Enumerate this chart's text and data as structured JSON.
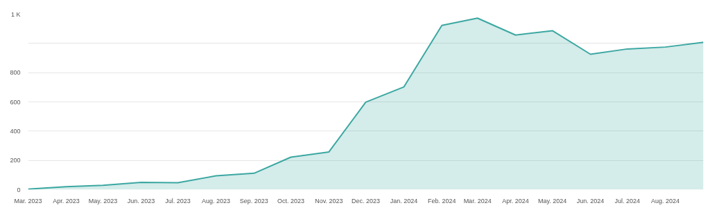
{
  "chart_data": {
    "type": "area",
    "x": [
      "2023-03-01",
      "2023-04-01",
      "2023-05-01",
      "2023-06-01",
      "2023-07-01",
      "2023-08-01",
      "2023-09-01",
      "2023-10-01",
      "2023-11-01",
      "2023-12-01",
      "2024-01-01",
      "2024-02-01",
      "2024-03-01",
      "2024-04-01",
      "2024-05-01",
      "2024-06-01",
      "2024-07-01",
      "2024-08-01",
      "2024-09-01"
    ],
    "series": [
      {
        "color": "#3ba7a1",
        "values": [
          3,
          20,
          30,
          50,
          47,
          94,
          112,
          222,
          258,
          598,
          702,
          1123,
          1173,
          1057,
          1087,
          926,
          962,
          975,
          1008
        ]
      }
    ],
    "xlim": [
      "2023-03-01",
      "2024-09-01"
    ],
    "xticks": [
      {
        "value": "2023-03-01",
        "label": "Mar. 2023"
      },
      {
        "value": "2023-04-01",
        "label": "Apr. 2023"
      },
      {
        "value": "2023-05-01",
        "label": "May. 2023"
      },
      {
        "value": "2023-06-01",
        "label": "Jun. 2023"
      },
      {
        "value": "2023-07-01",
        "label": "Jul. 2023"
      },
      {
        "value": "2023-08-01",
        "label": "Aug. 2023"
      },
      {
        "value": "2023-09-01",
        "label": "Sep. 2023"
      },
      {
        "value": "2023-10-01",
        "label": "Oct. 2023"
      },
      {
        "value": "2023-11-01",
        "label": "Nov. 2023"
      },
      {
        "value": "2023-12-01",
        "label": "Dec. 2023"
      },
      {
        "value": "2024-01-01",
        "label": "Jan. 2024"
      },
      {
        "value": "2024-02-01",
        "label": "Feb. 2024"
      },
      {
        "value": "2024-03-01",
        "label": "Mar. 2024"
      },
      {
        "value": "2024-04-01",
        "label": "Apr. 2024"
      },
      {
        "value": "2024-05-01",
        "label": "May. 2024"
      },
      {
        "value": "2024-06-01",
        "label": "Jun. 2024"
      },
      {
        "value": "2024-07-01",
        "label": "Jul. 2024"
      },
      {
        "value": "2024-08-01",
        "label": "Aug. 2024"
      }
    ],
    "ylim": [
      0,
      1200
    ],
    "yticks": [
      0,
      200,
      400,
      600,
      800,
      {
        "value": 1000,
        "label": null
      },
      {
        "value": 1200,
        "label": "1 K"
      }
    ],
    "grid": "y"
  }
}
